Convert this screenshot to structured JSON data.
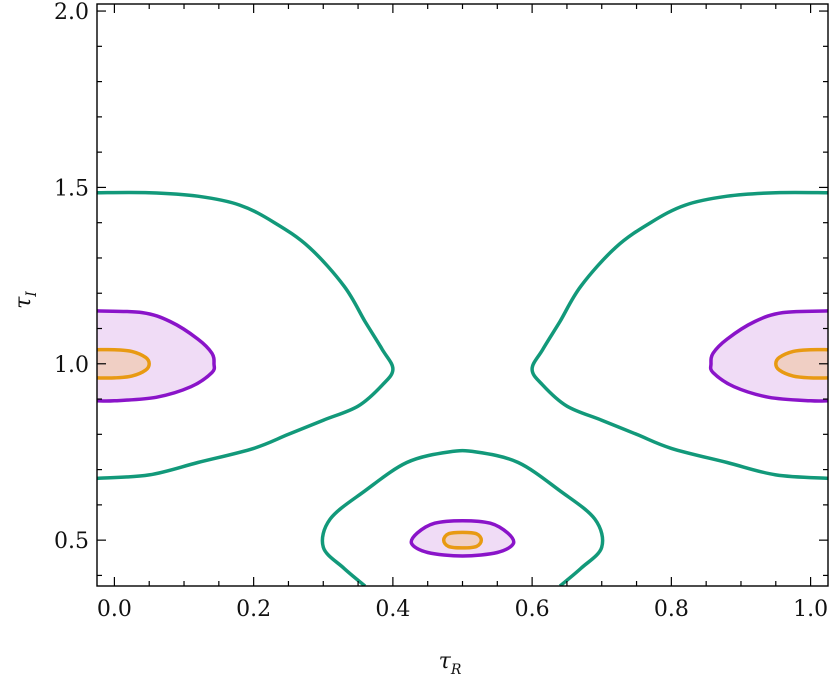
{
  "chart_data": {
    "type": "contour",
    "xlabel": "τ",
    "xlabel_sub": "R",
    "ylabel": "τ",
    "ylabel_sub": "I",
    "xlim": [
      -0.025,
      1.025
    ],
    "ylim": [
      0.37,
      2.02
    ],
    "xticks": [
      {
        "value": 0.0,
        "label": "0.0"
      },
      {
        "value": 0.2,
        "label": "0.2"
      },
      {
        "value": 0.4,
        "label": "0.4"
      },
      {
        "value": 0.6,
        "label": "0.6"
      },
      {
        "value": 0.8,
        "label": "0.8"
      },
      {
        "value": 1.0,
        "label": "1.0"
      }
    ],
    "yticks": [
      {
        "value": 0.5,
        "label": "0.5"
      },
      {
        "value": 1.0,
        "label": "1.0"
      },
      {
        "value": 1.5,
        "label": "1.5"
      },
      {
        "value": 2.0,
        "label": "2.0"
      }
    ],
    "grid": false,
    "colors": {
      "outer": "#12997a",
      "middle": "#8a14c9",
      "middle_fill": "#f0dcf6",
      "inner": "#e89a12",
      "inner_fill": "#f0cfc4"
    },
    "contours": [
      {
        "level": "outer",
        "points": [
          [
            -0.025,
            1.485
          ],
          [
            0.05,
            1.485
          ],
          [
            0.12,
            1.475
          ],
          [
            0.18,
            1.45
          ],
          [
            0.23,
            1.4
          ],
          [
            0.28,
            1.33
          ],
          [
            0.33,
            1.22
          ],
          [
            0.36,
            1.12
          ],
          [
            0.385,
            1.04
          ],
          [
            0.4,
            0.985
          ],
          [
            0.385,
            0.94
          ],
          [
            0.35,
            0.88
          ],
          [
            0.3,
            0.84
          ],
          [
            0.25,
            0.8
          ],
          [
            0.2,
            0.76
          ],
          [
            0.12,
            0.72
          ],
          [
            0.05,
            0.685
          ],
          [
            -0.025,
            0.675
          ]
        ]
      },
      {
        "level": "outer",
        "points": [
          [
            1.025,
            1.485
          ],
          [
            0.95,
            1.485
          ],
          [
            0.88,
            1.475
          ],
          [
            0.82,
            1.45
          ],
          [
            0.77,
            1.4
          ],
          [
            0.72,
            1.33
          ],
          [
            0.67,
            1.22
          ],
          [
            0.64,
            1.12
          ],
          [
            0.615,
            1.04
          ],
          [
            0.6,
            0.985
          ],
          [
            0.615,
            0.94
          ],
          [
            0.65,
            0.88
          ],
          [
            0.7,
            0.84
          ],
          [
            0.75,
            0.8
          ],
          [
            0.8,
            0.76
          ],
          [
            0.88,
            0.72
          ],
          [
            0.95,
            0.685
          ],
          [
            1.025,
            0.675
          ]
        ]
      },
      {
        "level": "outer",
        "points": [
          [
            0.36,
            0.37
          ],
          [
            0.33,
            0.42
          ],
          [
            0.3,
            0.48
          ],
          [
            0.31,
            0.56
          ],
          [
            0.36,
            0.64
          ],
          [
            0.42,
            0.72
          ],
          [
            0.48,
            0.75
          ],
          [
            0.52,
            0.75
          ],
          [
            0.58,
            0.72
          ],
          [
            0.64,
            0.64
          ],
          [
            0.69,
            0.56
          ],
          [
            0.7,
            0.48
          ],
          [
            0.67,
            0.42
          ],
          [
            0.64,
            0.37
          ]
        ]
      },
      {
        "level": "middle",
        "filled": true,
        "points": [
          [
            -0.025,
            1.15
          ],
          [
            0.04,
            1.145
          ],
          [
            0.08,
            1.12
          ],
          [
            0.12,
            1.07
          ],
          [
            0.14,
            1.03
          ],
          [
            0.143,
            1.0
          ],
          [
            0.14,
            0.975
          ],
          [
            0.11,
            0.935
          ],
          [
            0.06,
            0.905
          ],
          [
            0.0,
            0.895
          ],
          [
            -0.025,
            0.895
          ]
        ]
      },
      {
        "level": "middle",
        "filled": true,
        "points": [
          [
            1.025,
            1.15
          ],
          [
            0.96,
            1.145
          ],
          [
            0.92,
            1.12
          ],
          [
            0.88,
            1.07
          ],
          [
            0.86,
            1.03
          ],
          [
            0.857,
            1.0
          ],
          [
            0.86,
            0.975
          ],
          [
            0.89,
            0.935
          ],
          [
            0.94,
            0.905
          ],
          [
            1.0,
            0.895
          ],
          [
            1.025,
            0.895
          ]
        ]
      },
      {
        "level": "middle",
        "filled": true,
        "closed": true,
        "points": [
          [
            0.5,
            0.555
          ],
          [
            0.54,
            0.548
          ],
          [
            0.565,
            0.52
          ],
          [
            0.573,
            0.49
          ],
          [
            0.55,
            0.465
          ],
          [
            0.5,
            0.455
          ],
          [
            0.45,
            0.465
          ],
          [
            0.427,
            0.49
          ],
          [
            0.435,
            0.52
          ],
          [
            0.46,
            0.548
          ]
        ]
      },
      {
        "level": "inner",
        "filled": true,
        "points": [
          [
            -0.025,
            1.04
          ],
          [
            0.0,
            1.04
          ],
          [
            0.025,
            1.035
          ],
          [
            0.045,
            1.018
          ],
          [
            0.05,
            1.0
          ],
          [
            0.045,
            0.982
          ],
          [
            0.025,
            0.965
          ],
          [
            0.0,
            0.96
          ],
          [
            -0.025,
            0.96
          ]
        ]
      },
      {
        "level": "inner",
        "filled": true,
        "points": [
          [
            1.025,
            1.04
          ],
          [
            1.0,
            1.04
          ],
          [
            0.975,
            1.035
          ],
          [
            0.955,
            1.018
          ],
          [
            0.95,
            1.0
          ],
          [
            0.955,
            0.982
          ],
          [
            0.975,
            0.965
          ],
          [
            1.0,
            0.96
          ],
          [
            1.025,
            0.96
          ]
        ]
      },
      {
        "level": "inner",
        "filled": true,
        "closed": true,
        "points": [
          [
            0.5,
            0.522
          ],
          [
            0.52,
            0.518
          ],
          [
            0.527,
            0.5
          ],
          [
            0.52,
            0.482
          ],
          [
            0.5,
            0.478
          ],
          [
            0.48,
            0.482
          ],
          [
            0.473,
            0.5
          ],
          [
            0.48,
            0.518
          ]
        ]
      }
    ]
  }
}
